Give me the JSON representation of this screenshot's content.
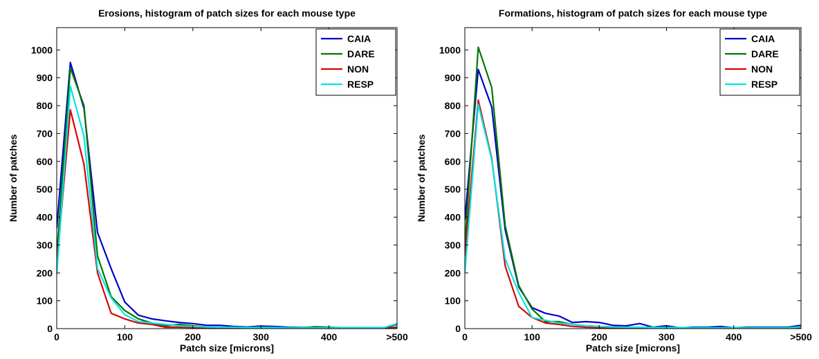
{
  "chart_data": [
    {
      "type": "line",
      "title": "Erosions, histogram of patch sizes for each mouse type",
      "xlabel": "Patch size [microns]",
      "ylabel": "Number of patches",
      "xlim": [
        0,
        500
      ],
      "ylim": [
        0,
        1080
      ],
      "grid": false,
      "legend_position": "top-right",
      "x_ticks": [
        {
          "value": 0,
          "label": "0"
        },
        {
          "value": 100,
          "label": "100"
        },
        {
          "value": 200,
          "label": "200"
        },
        {
          "value": 300,
          "label": "300"
        },
        {
          "value": 400,
          "label": "400"
        },
        {
          "value": 500,
          "label": ">500"
        }
      ],
      "y_ticks": [
        0,
        100,
        200,
        300,
        400,
        500,
        600,
        700,
        800,
        900,
        1000
      ],
      "x": [
        0,
        20,
        40,
        60,
        80,
        100,
        120,
        140,
        160,
        180,
        200,
        220,
        240,
        260,
        280,
        300,
        320,
        340,
        360,
        380,
        400,
        420,
        440,
        460,
        480,
        500
      ],
      "series": [
        {
          "name": "CAIA",
          "color": "#0000cc",
          "values": [
            360,
            955,
            790,
            345,
            215,
            95,
            48,
            35,
            28,
            22,
            18,
            12,
            12,
            8,
            6,
            9,
            8,
            5,
            4,
            4,
            4,
            3,
            3,
            3,
            3,
            15
          ]
        },
        {
          "name": "DARE",
          "color": "#007700",
          "values": [
            260,
            935,
            800,
            260,
            115,
            65,
            35,
            20,
            10,
            15,
            10,
            6,
            5,
            4,
            4,
            5,
            3,
            3,
            3,
            7,
            5,
            3,
            3,
            3,
            3,
            5
          ]
        },
        {
          "name": "NON",
          "color": "#dd0000",
          "values": [
            230,
            785,
            590,
            200,
            55,
            35,
            20,
            15,
            5,
            5,
            4,
            3,
            3,
            3,
            2,
            2,
            2,
            2,
            2,
            2,
            2,
            2,
            2,
            2,
            2,
            2
          ]
        },
        {
          "name": "RESP",
          "color": "#00e5e5",
          "values": [
            195,
            870,
            690,
            215,
            110,
            50,
            25,
            20,
            15,
            10,
            8,
            6,
            5,
            5,
            4,
            4,
            4,
            3,
            3,
            3,
            3,
            3,
            3,
            3,
            3,
            18
          ]
        }
      ]
    },
    {
      "type": "line",
      "title": "Formations, histogram of patch sizes for each mouse type",
      "xlabel": "Patch size [microns]",
      "ylabel": "Number of patches",
      "xlim": [
        0,
        500
      ],
      "ylim": [
        0,
        1080
      ],
      "grid": false,
      "legend_position": "top-right",
      "x_ticks": [
        {
          "value": 0,
          "label": "0"
        },
        {
          "value": 100,
          "label": "100"
        },
        {
          "value": 200,
          "label": "200"
        },
        {
          "value": 300,
          "label": "300"
        },
        {
          "value": 400,
          "label": "400"
        },
        {
          "value": 500,
          "label": ">500"
        }
      ],
      "y_ticks": [
        0,
        100,
        200,
        300,
        400,
        500,
        600,
        700,
        800,
        900,
        1000
      ],
      "x": [
        0,
        20,
        40,
        60,
        80,
        100,
        120,
        140,
        160,
        180,
        200,
        220,
        240,
        260,
        280,
        300,
        320,
        340,
        360,
        380,
        400,
        420,
        440,
        460,
        480,
        500
      ],
      "series": [
        {
          "name": "CAIA",
          "color": "#0000cc",
          "values": [
            390,
            930,
            795,
            355,
            150,
            75,
            55,
            45,
            22,
            25,
            22,
            12,
            10,
            18,
            5,
            10,
            3,
            5,
            5,
            8,
            3,
            5,
            5,
            5,
            5,
            12
          ]
        },
        {
          "name": "DARE",
          "color": "#007700",
          "values": [
            300,
            1010,
            865,
            370,
            155,
            70,
            25,
            25,
            15,
            10,
            8,
            6,
            4,
            4,
            4,
            4,
            3,
            3,
            3,
            3,
            3,
            3,
            3,
            3,
            3,
            8
          ]
        },
        {
          "name": "NON",
          "color": "#dd0000",
          "values": [
            260,
            820,
            610,
            225,
            80,
            40,
            20,
            15,
            8,
            5,
            4,
            3,
            3,
            2,
            2,
            2,
            2,
            2,
            2,
            2,
            2,
            2,
            2,
            2,
            2,
            2
          ]
        },
        {
          "name": "RESP",
          "color": "#00e5e5",
          "values": [
            200,
            805,
            605,
            250,
            130,
            40,
            30,
            20,
            15,
            10,
            8,
            6,
            5,
            5,
            4,
            4,
            4,
            3,
            3,
            3,
            3,
            3,
            3,
            3,
            3,
            6
          ]
        }
      ]
    }
  ]
}
